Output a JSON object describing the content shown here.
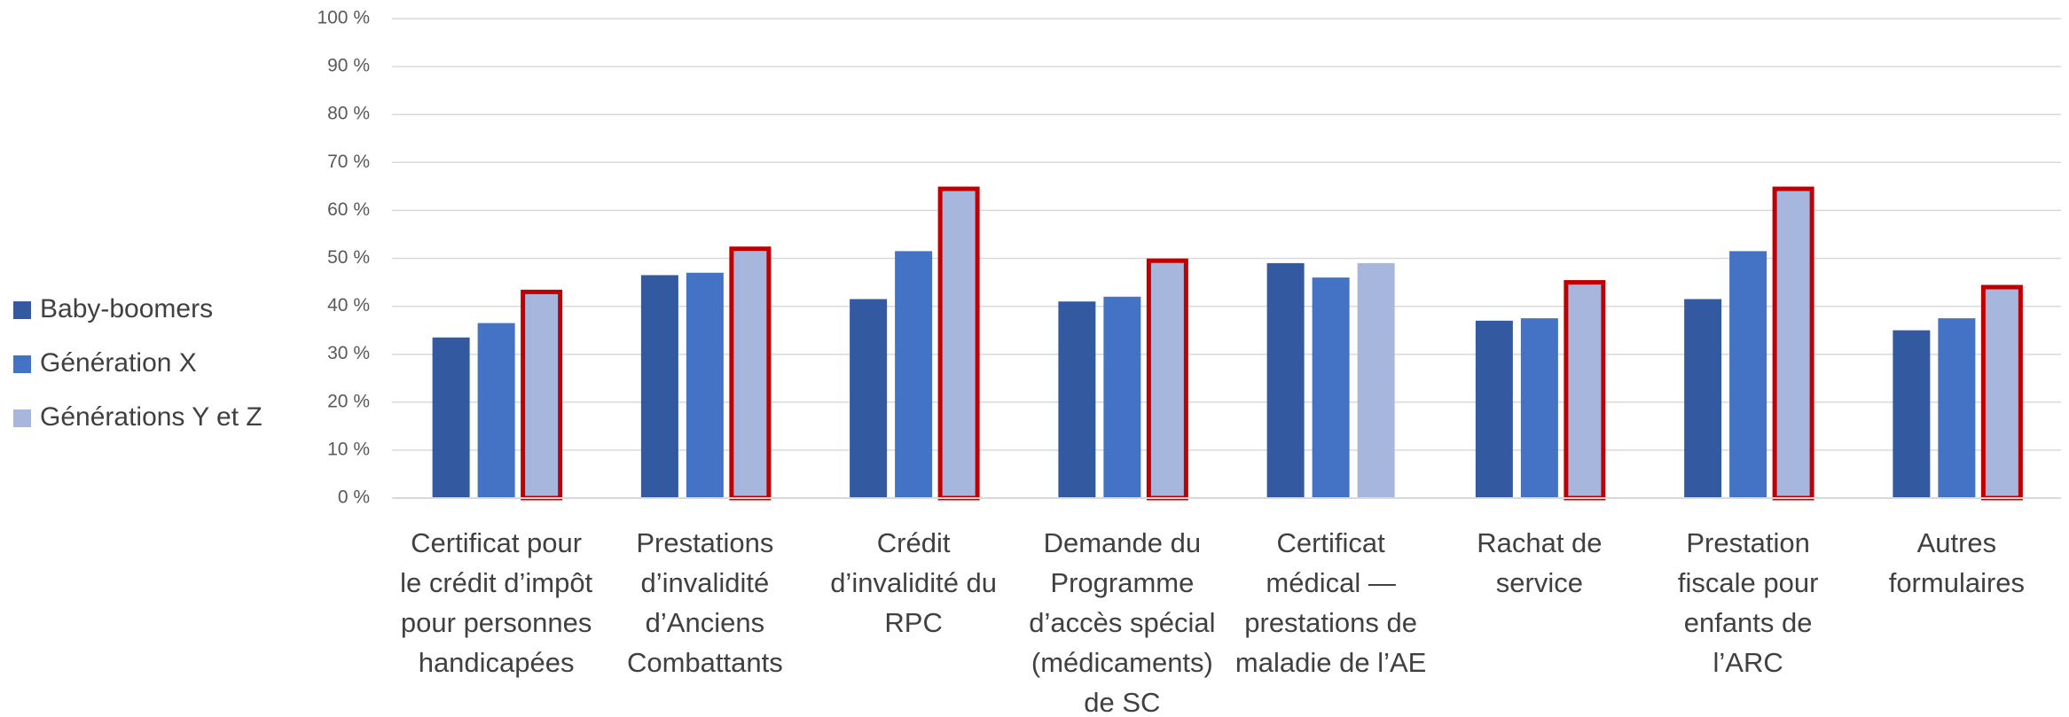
{
  "chart_data": {
    "type": "bar",
    "categories": [
      "Certificat pour le crédit d’impôt pour personnes handicapées",
      "Prestations d’invalidité d’Anciens Combattants",
      "Crédit d’invalidité du RPC",
      "Demande du Programme d’accès spécial (médicaments) de SC",
      "Certificat médical — prestations de maladie de l’AE",
      "Rachat de service",
      "Prestation fiscale pour enfants de l’ARC",
      "Autres formulaires"
    ],
    "series": [
      {
        "name": "Baby-boomers",
        "color": "#335aa1",
        "values": [
          33.5,
          46.5,
          41.5,
          41,
          49,
          37,
          41.5,
          35
        ]
      },
      {
        "name": "Génération X",
        "color": "#4472c4",
        "values": [
          36.5,
          47,
          51.5,
          42,
          46,
          37.5,
          51.5,
          37.5
        ]
      },
      {
        "name": "Générations Y et Z",
        "color": "#a7b6dd",
        "values": [
          43,
          52,
          64.5,
          49.5,
          49,
          45,
          64.5,
          44
        ],
        "highlight": [
          true,
          true,
          true,
          true,
          false,
          true,
          true,
          true
        ],
        "highlight_color": "#c00000"
      }
    ],
    "ylim": [
      0,
      100
    ],
    "yticks": [
      {
        "value": 0,
        "label": "0 %"
      },
      {
        "value": 10,
        "label": "10 %"
      },
      {
        "value": 20,
        "label": "20 %"
      },
      {
        "value": 30,
        "label": "30 %"
      },
      {
        "value": 40,
        "label": "40 %"
      },
      {
        "value": 50,
        "label": "50 %"
      },
      {
        "value": 60,
        "label": "60 %"
      },
      {
        "value": 70,
        "label": "70 %"
      },
      {
        "value": 80,
        "label": "80 %"
      },
      {
        "value": 90,
        "label": "90 %"
      },
      {
        "value": 100,
        "label": "100 %"
      }
    ],
    "grid": true,
    "legend": "left"
  }
}
